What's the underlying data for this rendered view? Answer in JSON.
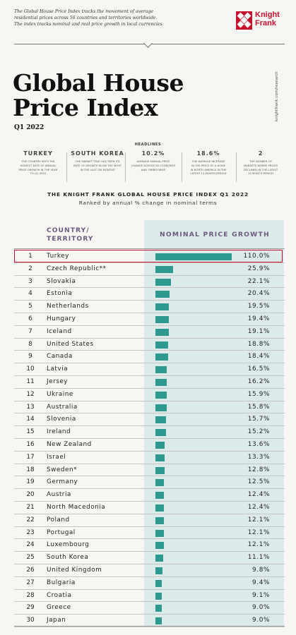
{
  "intro": {
    "lines": [
      "The Global House Price Index tracks the movement of average",
      "residential prices across 56 countries and territories worldwide.",
      "The index tracks nominal and real price growth in local currencies."
    ]
  },
  "logo": {
    "line1": "Knight",
    "line2": "Frank"
  },
  "vertical_url": "knightfrank.com/research",
  "title": {
    "line1": "Global House",
    "line2": "Price Index"
  },
  "subtitle": "Q1 2022",
  "headlines": {
    "heading": "HEADLINES",
    "items": [
      {
        "value": "TURKEY",
        "desc": [
          "THE COUNTRY WITH THE",
          "HIGHEST RATE OF ANNUAL",
          "PRICE GROWTH IN THE YEAR",
          "TO Q1 2022"
        ]
      },
      {
        "value": "SOUTH KOREA",
        "desc": [
          "THE MARKET THAT HAS SEEN ITS",
          "RATE OF GROWTH SLOW THE MOST",
          "IN THE LAST SIX MONTHS"
        ]
      },
      {
        "value": "10.2%",
        "desc": [
          "AVERAGE ANNUAL PRICE",
          "CHANGE ACROSS 56 COUNTRIES",
          "AND TERRITORIES"
        ]
      },
      {
        "value": "18.6%",
        "desc": [
          "THE AVERAGE INCREASE",
          "IN THE PRICE OF A HOME",
          "IN NORTH AMERICA IN THE",
          "LATEST 12-MONTH PERIOD"
        ]
      },
      {
        "value": "2",
        "desc": [
          "THE NUMBER OF",
          "MARKETS WHERE PRICES",
          "DECLINED IN THE LATEST",
          "12-MONTH PERIOD"
        ]
      }
    ]
  },
  "chart_data": {
    "type": "bar",
    "title": "THE KNIGHT FRANK GLOBAL HOUSE PRICE INDEX Q1 2022",
    "subtitle": "Ranked by annual % change in nominal terms",
    "col_country": [
      "COUNTRY/",
      "TERRITORY"
    ],
    "col_growth": "NOMINAL PRICE GROWTH",
    "highlight_rank": 1,
    "bar_color": "#2e9a8f",
    "highlight_color": "#c8102e",
    "xlim": [
      0,
      110
    ],
    "rows": [
      {
        "rank": "1",
        "country": "Turkey",
        "value": 110.0,
        "label": "110.0%"
      },
      {
        "rank": "2",
        "country": "Czech Republic**",
        "value": 25.9,
        "label": "25.9%"
      },
      {
        "rank": "3",
        "country": "Slovakia",
        "value": 22.1,
        "label": "22.1%"
      },
      {
        "rank": "4",
        "country": "Estonia",
        "value": 20.4,
        "label": "20.4%"
      },
      {
        "rank": "5",
        "country": "Netherlands",
        "value": 19.5,
        "label": "19.5%"
      },
      {
        "rank": "6",
        "country": "Hungary",
        "value": 19.4,
        "label": "19.4%"
      },
      {
        "rank": "7",
        "country": "Iceland",
        "value": 19.1,
        "label": "19.1%"
      },
      {
        "rank": "8",
        "country": "United States",
        "value": 18.8,
        "label": "18.8%"
      },
      {
        "rank": "9",
        "country": "Canada",
        "value": 18.4,
        "label": "18.4%"
      },
      {
        "rank": "10",
        "country": "Latvia",
        "value": 16.5,
        "label": "16.5%"
      },
      {
        "rank": "11",
        "country": "Jersey",
        "value": 16.2,
        "label": "16.2%"
      },
      {
        "rank": "12",
        "country": "Ukraine",
        "value": 15.9,
        "label": "15.9%"
      },
      {
        "rank": "13",
        "country": "Australia",
        "value": 15.8,
        "label": "15.8%"
      },
      {
        "rank": "14",
        "country": "Slovenia",
        "value": 15.7,
        "label": "15.7%"
      },
      {
        "rank": "15",
        "country": "Ireland",
        "value": 15.2,
        "label": "15.2%"
      },
      {
        "rank": "16",
        "country": "New Zealand",
        "value": 13.6,
        "label": "13.6%"
      },
      {
        "rank": "17",
        "country": "Israel",
        "value": 13.3,
        "label": "13.3%"
      },
      {
        "rank": "18",
        "country": "Sweden*",
        "value": 12.8,
        "label": "12.8%"
      },
      {
        "rank": "19",
        "country": "Germany",
        "value": 12.5,
        "label": "12.5%"
      },
      {
        "rank": "20",
        "country": "Austria",
        "value": 12.4,
        "label": "12.4%"
      },
      {
        "rank": "21",
        "country": "North Macedonia",
        "value": 12.4,
        "label": "12.4%"
      },
      {
        "rank": "22",
        "country": "Poland",
        "value": 12.1,
        "label": "12.1%"
      },
      {
        "rank": "23",
        "country": "Portugal",
        "value": 12.1,
        "label": "12.1%"
      },
      {
        "rank": "24",
        "country": "Luxembourg",
        "value": 12.1,
        "label": "12.1%"
      },
      {
        "rank": "25",
        "country": "South Korea",
        "value": 11.1,
        "label": "11.1%"
      },
      {
        "rank": "26",
        "country": "United Kingdom",
        "value": 9.8,
        "label": "9.8%"
      },
      {
        "rank": "27",
        "country": "Bulgaria",
        "value": 9.4,
        "label": "9.4%"
      },
      {
        "rank": "28",
        "country": "Croatia",
        "value": 9.1,
        "label": "9.1%"
      },
      {
        "rank": "29",
        "country": "Greece",
        "value": 9.0,
        "label": "9.0%"
      },
      {
        "rank": "30",
        "country": "Japan",
        "value": 9.0,
        "label": "9.0%"
      }
    ]
  }
}
